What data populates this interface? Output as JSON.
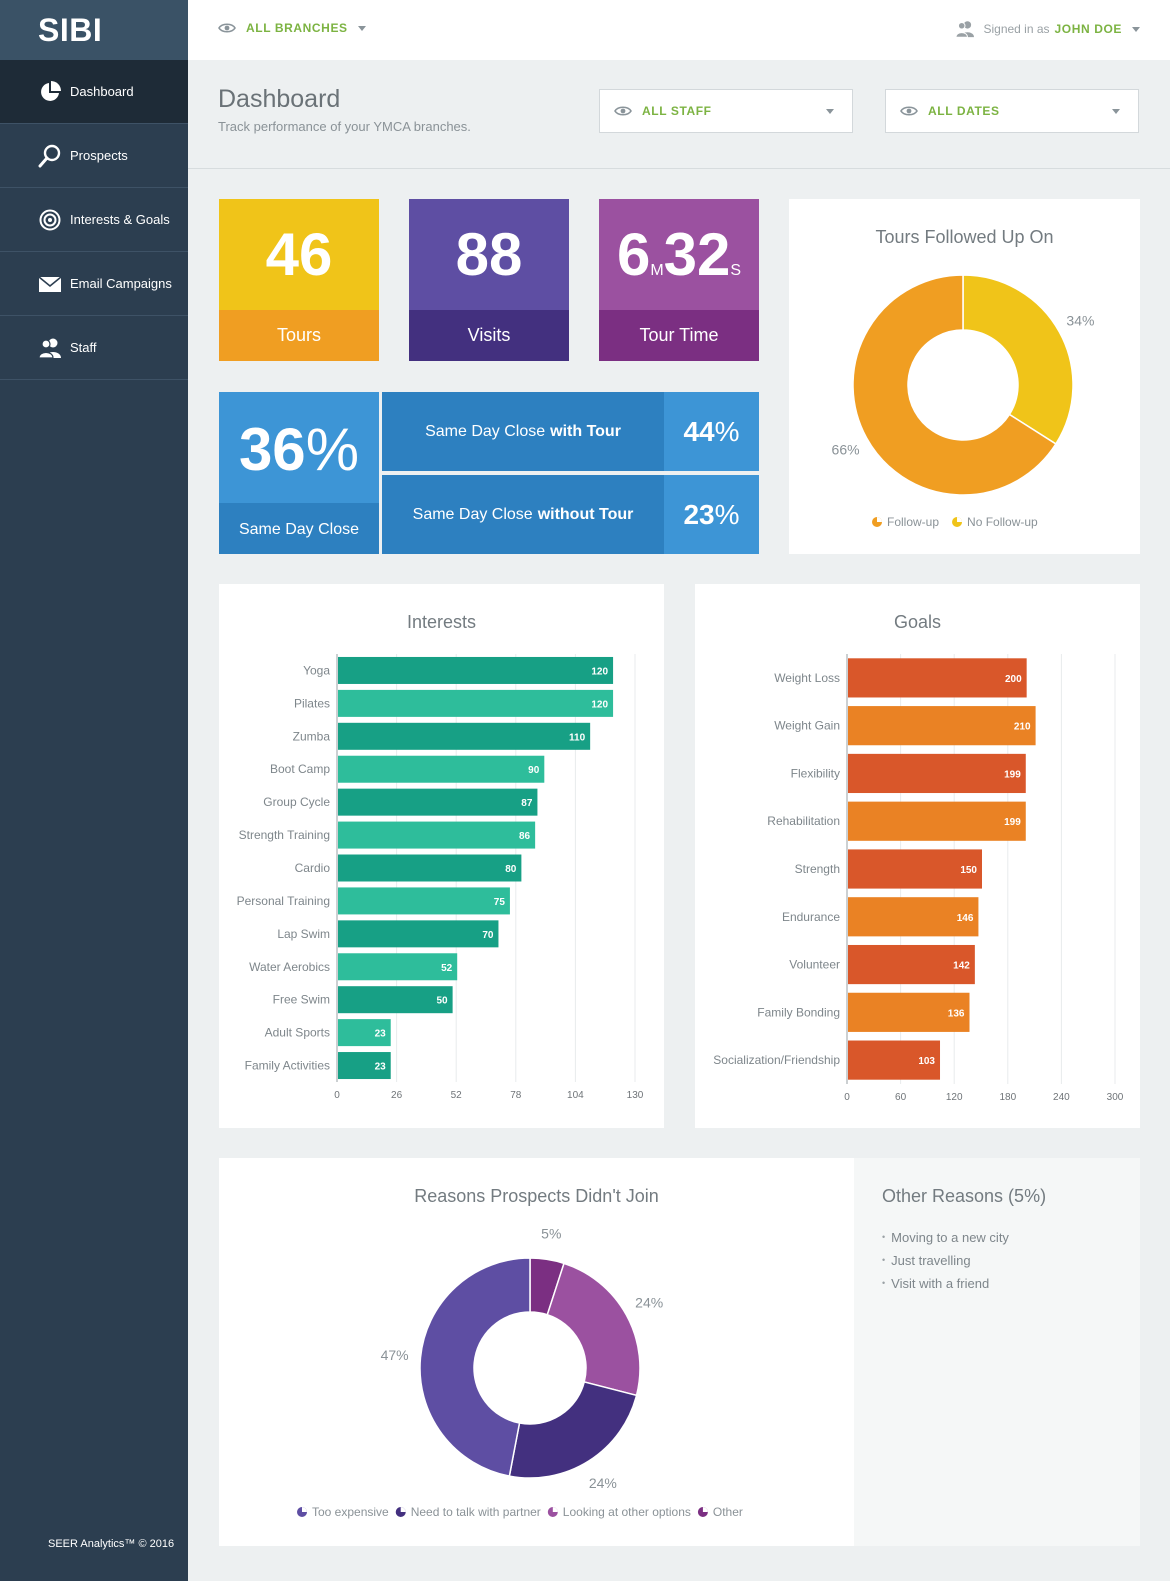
{
  "app": {
    "logo": "SIBI"
  },
  "sidebar": {
    "items": [
      {
        "label": "Dashboard",
        "icon": "pie-chart-icon",
        "active": true
      },
      {
        "label": "Prospects",
        "icon": "search-icon"
      },
      {
        "label": "Interests & Goals",
        "icon": "target-icon"
      },
      {
        "label": "Email Campaigns",
        "icon": "envelope-icon"
      },
      {
        "label": "Staff",
        "icon": "users-icon"
      }
    ],
    "footer": "SEER Analytics™ © 2016"
  },
  "topbar": {
    "branches_label": "ALL BRANCHES",
    "signed_in_prefix": "Signed in as",
    "user_name": "JOHN DOE"
  },
  "header": {
    "title": "Dashboard",
    "subtitle": "Track performance of your YMCA branches.",
    "staff_filter": "ALL STAFF",
    "dates_filter": "ALL DATES"
  },
  "kpis": {
    "tours": {
      "value": "46",
      "label": "Tours"
    },
    "visits": {
      "value": "88",
      "label": "Visits"
    },
    "tour_time": {
      "minutes": "6",
      "minutes_unit": "M",
      "seconds": "32",
      "seconds_unit": "S",
      "label": "Tour Time"
    },
    "same_day_close": {
      "value": "36",
      "unit": "%",
      "label": "Same Day Close"
    },
    "with_tour": {
      "text": "Same Day Close",
      "bold": "with Tour",
      "value": "44",
      "unit": "%"
    },
    "without_tour": {
      "text": "Same Day Close",
      "bold": "without Tour",
      "value": "23",
      "unit": "%"
    }
  },
  "colors": {
    "sidebar": "#2c3e50",
    "accent_green": "#7cb342",
    "tours": "#f0c419",
    "visits": "#5e4ea3",
    "tour_time": "#9b51a0",
    "sdc": "#3d95d6",
    "teal_dark": "#17a085",
    "teal_light": "#2ebd9b",
    "orange_dark": "#d9572a",
    "orange_light": "#ea8224"
  },
  "chart_data": [
    {
      "type": "pie",
      "title": "Tours Followed Up On",
      "labels": [
        "Follow-up",
        "No Follow-up"
      ],
      "values": [
        66,
        34
      ],
      "value_labels": [
        "66%",
        "34%"
      ],
      "colors": [
        "#f09e22",
        "#f0c419"
      ],
      "legend": "bottom"
    },
    {
      "type": "bar",
      "orientation": "horizontal",
      "title": "Interests",
      "categories": [
        "Yoga",
        "Pilates",
        "Zumba",
        "Boot Camp",
        "Group Cycle",
        "Strength Training",
        "Cardio",
        "Personal Training",
        "Lap Swim",
        "Water Aerobics",
        "Free Swim",
        "Adult Sports",
        "Family Activities"
      ],
      "values": [
        120,
        120,
        110,
        90,
        87,
        86,
        80,
        75,
        70,
        52,
        50,
        23,
        23
      ],
      "xlim": [
        0,
        130
      ],
      "ticks": [
        0,
        26,
        52,
        78,
        104,
        130
      ],
      "grid": true
    },
    {
      "type": "bar",
      "orientation": "horizontal",
      "title": "Goals",
      "categories": [
        "Weight Loss",
        "Weight Gain",
        "Flexibility",
        "Rehabilitation",
        "Strength",
        "Endurance",
        "Volunteer",
        "Family Bonding",
        "Socialization/Friendship"
      ],
      "values": [
        200,
        210,
        199,
        199,
        150,
        146,
        142,
        136,
        103
      ],
      "xlim": [
        0,
        300
      ],
      "ticks": [
        0,
        60,
        120,
        180,
        240,
        300
      ],
      "grid": true
    },
    {
      "type": "pie",
      "title": "Reasons Prospects Didn't Join",
      "labels": [
        "Too expensive",
        "Need to talk with partner",
        "Looking at other options",
        "Other"
      ],
      "values": [
        47,
        24,
        24,
        5
      ],
      "value_labels": [
        "47%",
        "24%",
        "24%",
        "5%"
      ],
      "colors": [
        "#5e4ea3",
        "#43307f",
        "#9b51a0",
        "#7b2f82"
      ],
      "legend": "bottom"
    }
  ],
  "other_reasons": {
    "title": "Other Reasons (5%)",
    "items": [
      "Moving to a new city",
      "Just travelling",
      "Visit with a friend"
    ]
  }
}
